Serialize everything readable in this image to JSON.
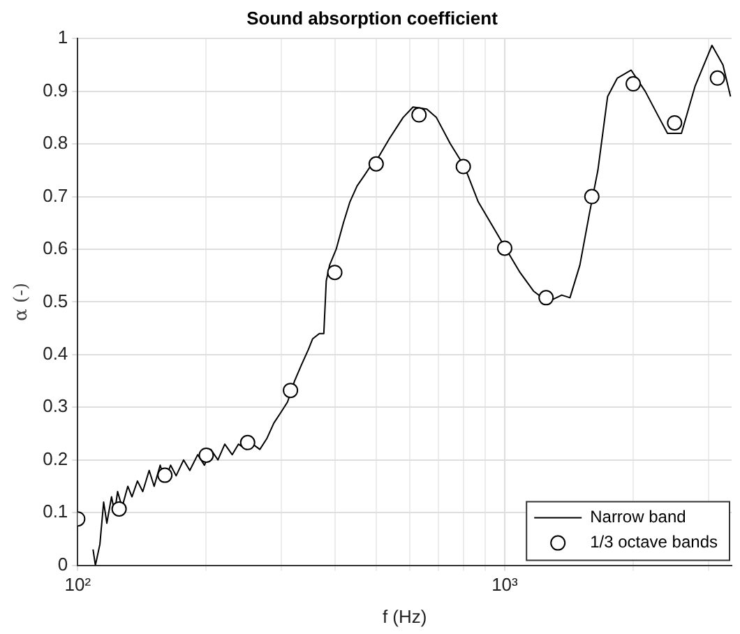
{
  "chart_data": {
    "type": "line",
    "title": "Sound absorption coefficient",
    "xlabel": "f (Hz)",
    "ylabel": "α (-)",
    "log": "x",
    "grid": true,
    "legend": "bottom right",
    "xlim": [
      100,
      3400
    ],
    "ylim": [
      0,
      1
    ],
    "xticks": [
      {
        "value": 100,
        "label": "10²"
      },
      {
        "value": 200,
        "label": null
      },
      {
        "value": 300,
        "label": null
      },
      {
        "value": 400,
        "label": null
      },
      {
        "value": 500,
        "label": null
      },
      {
        "value": 600,
        "label": null
      },
      {
        "value": 700,
        "label": null
      },
      {
        "value": 800,
        "label": null
      },
      {
        "value": 900,
        "label": null
      },
      {
        "value": 1000,
        "label": "10³"
      },
      {
        "value": 2000,
        "label": null
      },
      {
        "value": 3000,
        "label": null
      }
    ],
    "yticks": [
      0,
      0.1,
      0.2,
      0.3,
      0.4,
      0.5,
      0.6,
      0.7,
      0.8,
      0.9,
      1
    ],
    "series": [
      {
        "name": "Narrow band",
        "color": "#000000",
        "marker": "none",
        "line_style": "solid",
        "x": [
          108.6,
          110,
          112.7,
          115,
          117,
          120,
          122,
          124,
          127,
          131,
          134,
          138,
          142,
          147,
          151,
          156,
          160,
          165,
          170,
          177,
          183,
          191,
          198,
          205,
          213,
          221,
          230,
          238,
          248,
          257,
          267,
          277,
          288,
          299,
          310,
          322,
          334,
          347,
          355,
          368,
          377,
          382,
          389,
          403,
          419,
          434,
          451,
          469,
          487,
          498,
          537,
          578,
          610,
          657,
          692,
          746,
          805,
          867,
          935,
          1008,
          1086,
          1170,
          1262,
          1360,
          1422,
          1500,
          1581,
          1653,
          1742,
          1836,
          1978,
          2133,
          2299,
          2406,
          2594,
          2793,
          3058,
          3245,
          3380
        ],
        "values": [
          0.03,
          0.0,
          0.04,
          0.12,
          0.08,
          0.13,
          0.1,
          0.14,
          0.11,
          0.15,
          0.13,
          0.16,
          0.14,
          0.18,
          0.15,
          0.19,
          0.16,
          0.19,
          0.17,
          0.2,
          0.18,
          0.21,
          0.19,
          0.22,
          0.2,
          0.23,
          0.21,
          0.23,
          0.22,
          0.23,
          0.22,
          0.24,
          0.27,
          0.29,
          0.31,
          0.35,
          0.38,
          0.41,
          0.43,
          0.44,
          0.44,
          0.54,
          0.57,
          0.6,
          0.65,
          0.69,
          0.72,
          0.74,
          0.76,
          0.765,
          0.81,
          0.85,
          0.87,
          0.866,
          0.85,
          0.8,
          0.757,
          0.69,
          0.645,
          0.6,
          0.556,
          0.52,
          0.5,
          0.513,
          0.508,
          0.57,
          0.67,
          0.75,
          0.89,
          0.925,
          0.94,
          0.9,
          0.85,
          0.82,
          0.82,
          0.91,
          0.987,
          0.95,
          0.89
        ]
      },
      {
        "name": "1/3 octave bands",
        "type": "scatter",
        "color": "#000000",
        "marker": "circle",
        "x": [
          100,
          125,
          160,
          200,
          250,
          315,
          400,
          500,
          630,
          800,
          1000,
          1250,
          1600,
          2000,
          2500,
          3150
        ],
        "values": [
          0.088,
          0.107,
          0.171,
          0.209,
          0.233,
          0.332,
          0.556,
          0.762,
          0.855,
          0.757,
          0.602,
          0.508,
          0.7,
          0.914,
          0.84,
          0.925
        ]
      }
    ]
  }
}
